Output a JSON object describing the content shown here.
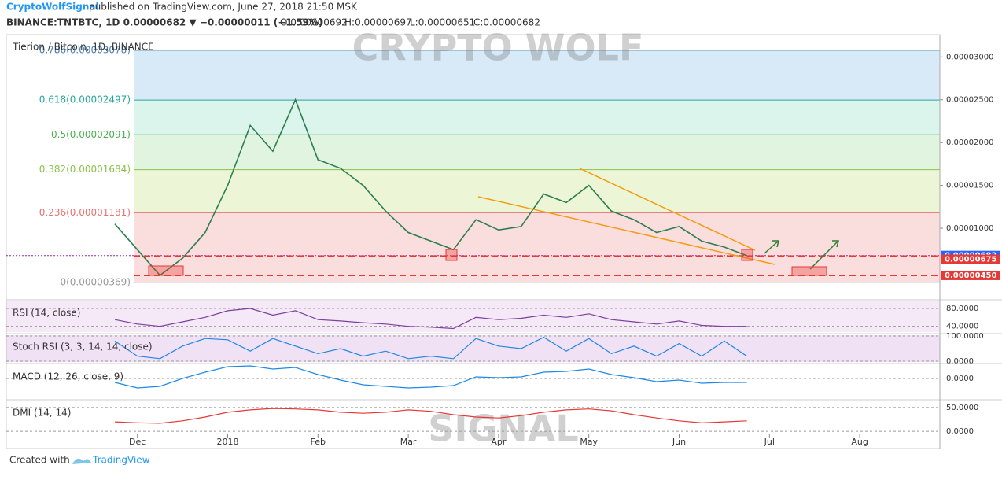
{
  "header": {
    "author": "CryptoWolfSignal",
    "published": "published on TradingView.com, June 27, 2018 21:50 MSK",
    "quote": "BINANCE:TNTBTC, 1D  0.00000682 ▼ −0.00000011 (−1.59%)",
    "ohlc": [
      "O:0.00000692",
      "H:0.00000697",
      "L:0.00000651",
      "C:0.00000682"
    ]
  },
  "chart_data": {
    "type": "line",
    "title": "Tierion / Bitcoin, 1D, BINANCE",
    "watermark": [
      "CRYPTO WOLF",
      "SIGNAL"
    ],
    "categories": [
      null,
      "Dec",
      null,
      null,
      null,
      "2018",
      null,
      null,
      null,
      "Feb",
      null,
      null,
      null,
      "Mar",
      null,
      null,
      null,
      "Apr",
      null,
      null,
      null,
      "May",
      null,
      null,
      null,
      "Jun",
      null,
      null,
      null,
      "Jul",
      null,
      null,
      null,
      "Aug",
      null
    ],
    "series": [
      {
        "name": "TNTBTC",
        "color": "#2e7d4f",
        "values": [
          1.05e-05,
          7.5e-06,
          4.5e-06,
          6.5e-06,
          9.5e-06,
          1.5e-05,
          2.2e-05,
          1.9e-05,
          2.5e-05,
          1.8e-05,
          1.7e-05,
          1.5e-05,
          1.2e-05,
          9.5e-06,
          8.5e-06,
          7.5e-06,
          1.1e-05,
          9.8e-06,
          1.02e-05,
          1.4e-05,
          1.3e-05,
          1.5e-05,
          1.2e-05,
          1.1e-05,
          9.5e-06,
          1.02e-05,
          8.5e-06,
          7.8e-06,
          6.8e-06,
          null,
          null,
          null,
          null,
          null,
          null
        ]
      }
    ],
    "ylim": [
      1.74e-06,
      3.26e-05
    ],
    "yticks": [
      {
        "value": 1e-05,
        "label": "0.00001000"
      },
      {
        "value": 1.5e-05,
        "label": "0.00001500"
      },
      {
        "value": 2e-05,
        "label": "0.00002000"
      },
      {
        "value": 2.5e-05,
        "label": "0.00002500"
      },
      {
        "value": 3e-05,
        "label": "0.00003000"
      }
    ],
    "fib_levels": [
      {
        "label": "0.786(0.00003078)",
        "price": 3.078e-05,
        "color": "#4a7fb0"
      },
      {
        "label": "0.618(0.00002497)",
        "price": 2.497e-05,
        "color": "#26a69a"
      },
      {
        "label": "0.5(0.00002091)",
        "price": 2.091e-05,
        "color": "#4caf50"
      },
      {
        "label": "0.382(0.00001684)",
        "price": 1.684e-05,
        "color": "#8bc34a"
      },
      {
        "label": "0.236(0.00001181)",
        "price": 1.181e-05,
        "color": "#e57373"
      },
      {
        "label": "0(0.00000369)",
        "price": 3.69e-06,
        "color": "#999999"
      }
    ],
    "price_tags": [
      {
        "label": "0.00000682",
        "value": 6.82e-06,
        "color": "#2962ff"
      },
      {
        "label": "0.00000675",
        "value": 6.75e-06,
        "color": "#e53935"
      },
      {
        "label": "0.00000450",
        "value": 4.5e-06,
        "color": "#e53935"
      }
    ],
    "panels": [
      {
        "title": "RSI (14, close)",
        "color": "#7b3f9e",
        "ylim": [
          27,
          96
        ],
        "yticks": [
          {
            "value": 80,
            "label": "80.0000"
          },
          {
            "value": 40,
            "label": "40.0000"
          }
        ],
        "values": [
          55,
          45,
          40,
          50,
          60,
          75,
          80,
          65,
          75,
          55,
          52,
          48,
          45,
          40,
          38,
          35,
          60,
          55,
          58,
          65,
          60,
          68,
          55,
          50,
          45,
          52,
          42,
          40,
          40,
          null,
          null,
          null,
          null,
          null,
          null
        ]
      },
      {
        "title": "Stoch RSI (3, 3, 14, 14, close)",
        "color": "#1e88e5",
        "ylim": [
          -3,
          103
        ],
        "yticks": [
          {
            "value": 100,
            "label": "100.0000"
          },
          {
            "value": 0,
            "label": "0.0000"
          }
        ],
        "values": [
          80,
          20,
          10,
          60,
          90,
          85,
          40,
          90,
          60,
          30,
          50,
          20,
          40,
          10,
          20,
          10,
          90,
          60,
          50,
          95,
          40,
          90,
          30,
          60,
          20,
          70,
          20,
          80,
          20,
          null,
          null,
          null,
          null,
          null,
          null
        ]
      },
      {
        "title": "MACD (12, 26, close, 9)",
        "color": "#1e88e5",
        "ylim": [
          -2.6e-06,
          1.7e-06
        ],
        "yticks": [
          {
            "value": 0,
            "label": "0.0000"
          }
        ],
        "values": [
          -5e-07,
          -1.2e-06,
          -1e-06,
          0,
          8e-07,
          1.5e-06,
          1.6e-06,
          1.2e-06,
          1.4e-06,
          5e-07,
          -2e-07,
          -8e-07,
          -1e-06,
          -1.2e-06,
          -1.1e-06,
          -9e-07,
          2e-07,
          1e-07,
          2e-07,
          8e-07,
          9e-07,
          1.2e-06,
          5e-07,
          1e-07,
          -4e-07,
          -2e-07,
          -6e-07,
          -5e-07,
          -5e-07,
          null,
          null,
          null,
          null,
          null,
          null
        ]
      },
      {
        "title": "DMI (14, 14)",
        "color": "#e53935",
        "ylim": [
          -3,
          63
        ],
        "yticks": [
          {
            "value": 50,
            "label": "50.0000"
          },
          {
            "value": 0,
            "label": "0.0000"
          }
        ],
        "values": [
          20,
          18,
          17,
          22,
          30,
          40,
          45,
          48,
          47,
          45,
          40,
          38,
          40,
          45,
          42,
          35,
          30,
          28,
          33,
          40,
          45,
          47,
          43,
          35,
          28,
          22,
          18,
          20,
          22,
          null,
          null,
          null,
          null,
          null,
          null
        ]
      }
    ],
    "footer": {
      "created": "Created with",
      "brand": "TradingView"
    }
  }
}
